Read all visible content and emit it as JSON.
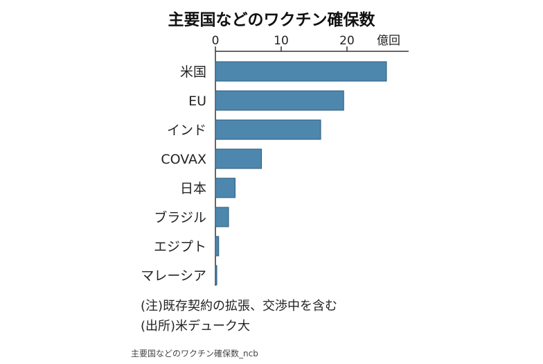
{
  "chart_data": {
    "type": "bar",
    "orientation": "horizontal",
    "title": "主要国などのワクチン確保数",
    "unit_label": "億回",
    "xlim": [
      0,
      29
    ],
    "xticks": [
      0,
      10,
      20
    ],
    "categories": [
      "米国",
      "EU",
      "インド",
      "COVAX",
      "日本",
      "ブラジル",
      "エジプト",
      "マレーシア"
    ],
    "values": [
      26,
      19.5,
      16,
      7,
      3,
      2,
      0.5,
      0.2
    ],
    "bar_color": "#4e87ad",
    "grid": false
  },
  "notes": {
    "note1": "(注)既存契約の拡張、交渉中を含む",
    "note2": "(出所)米デューク大"
  },
  "caption": "主要国などのワクチン確保数_ncb"
}
